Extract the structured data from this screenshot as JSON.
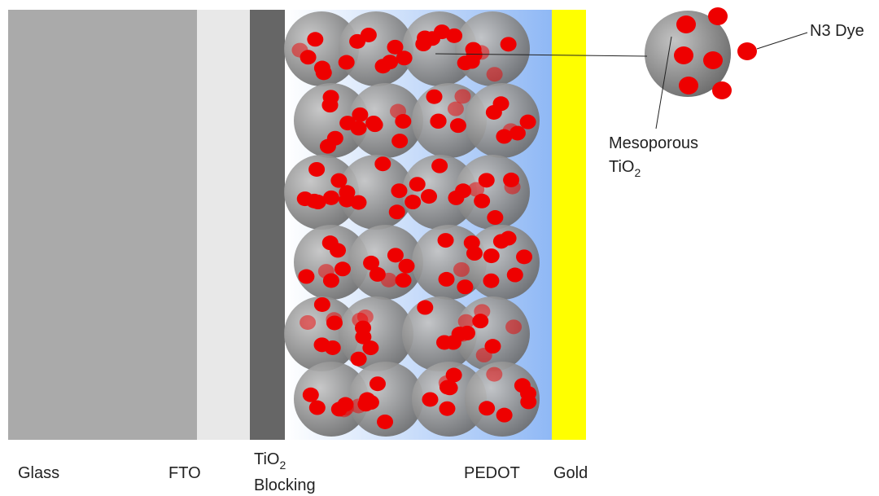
{
  "layers": [
    {
      "label": "Glass"
    },
    {
      "label": "FTO"
    },
    {
      "label_parts": [
        "TiO",
        "2"
      ],
      "label_line2": "Blocking"
    },
    {
      "label": "PEDOT"
    },
    {
      "label": "Gold"
    }
  ],
  "callouts": {
    "particle": {
      "label": "Mesoporous",
      "label_parts": [
        "TiO",
        "2"
      ]
    },
    "dye": {
      "label": "N3 Dye"
    }
  }
}
